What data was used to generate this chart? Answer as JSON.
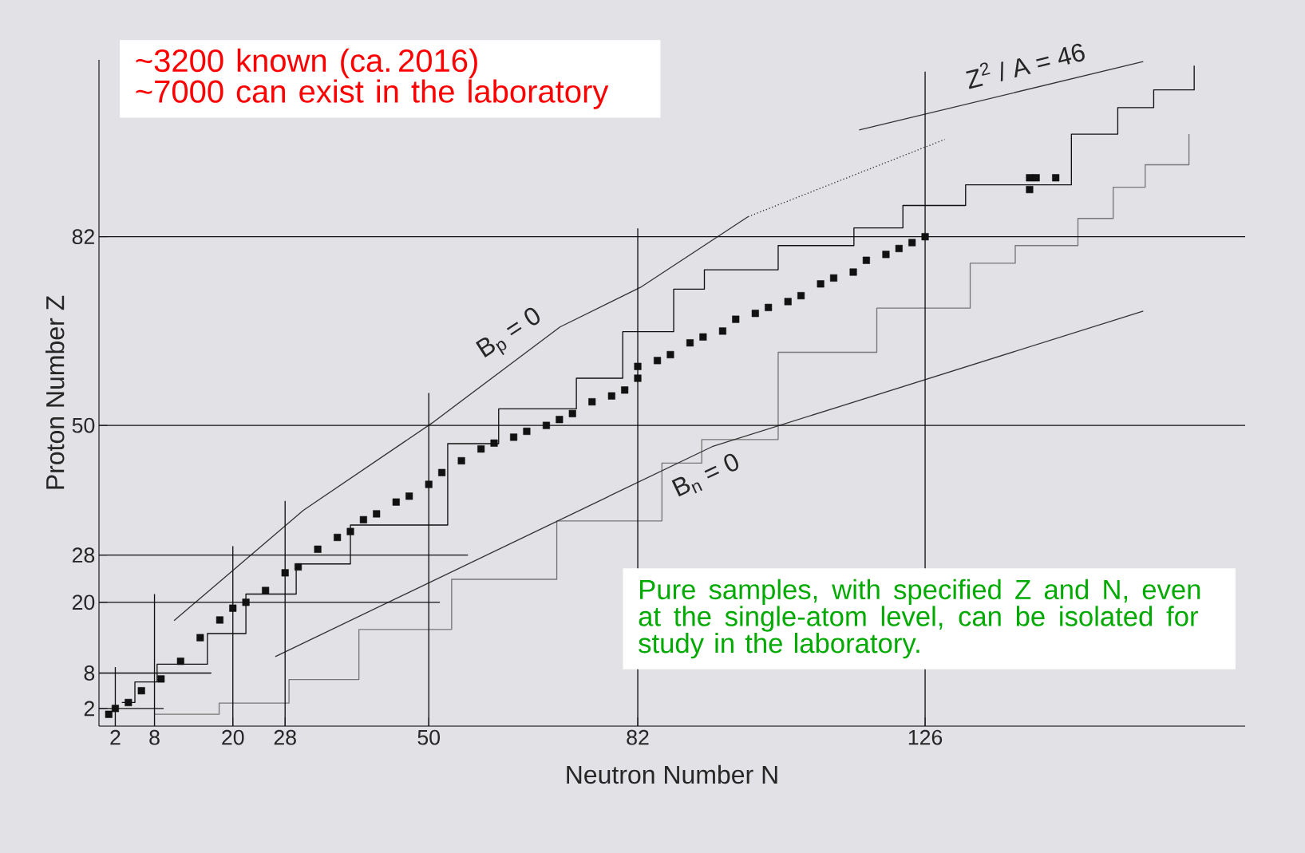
{
  "chart_data": {
    "type": "scatter",
    "xlabel": "Neutron Number   N",
    "ylabel": "Proton Number   Z",
    "xlim": [
      -0.5,
      175
    ],
    "ylim": [
      -1,
      112
    ],
    "xticks": [
      2,
      8,
      20,
      28,
      50,
      82,
      126
    ],
    "yticks": [
      2,
      8,
      20,
      28,
      50,
      82
    ],
    "grid": false,
    "series": [
      {
        "marker": "square",
        "color": "#111111",
        "x": [
          1,
          2,
          4,
          6,
          9,
          12,
          15,
          18,
          20,
          22,
          25,
          28,
          30,
          33,
          36,
          38,
          40,
          42,
          45,
          47,
          50,
          52,
          55,
          58,
          60,
          63,
          65,
          68,
          70,
          72,
          75,
          78,
          80,
          82,
          82,
          85,
          87,
          90,
          92,
          95,
          97,
          100,
          102,
          105,
          107,
          110,
          112,
          115,
          117,
          120,
          122,
          124,
          126,
          142,
          143,
          146,
          142
        ],
        "values": [
          1,
          2,
          3,
          5,
          7,
          10,
          14,
          17,
          19,
          20,
          22,
          25,
          26,
          29,
          31,
          32,
          34,
          35,
          37,
          38,
          40,
          42,
          44,
          46,
          47,
          48,
          49,
          50,
          51,
          52,
          54,
          55,
          56,
          58,
          60,
          61,
          62,
          64,
          65,
          66,
          68,
          69,
          70,
          71,
          72,
          74,
          75,
          76,
          78,
          79,
          80,
          81,
          82,
          92,
          92,
          92,
          90
        ]
      },
      {
        "type": "step",
        "color": "#111111",
        "x": [
          3,
          5,
          8.4,
          16.1,
          22,
          29.7,
          38,
          52.9,
          60.7,
          72.6,
          79.7,
          87.5,
          92.2,
          103.5,
          115.1,
          122.6,
          132.2,
          148.4,
          155.5,
          161,
          167.2
        ],
        "values": [
          3,
          6.5,
          9.5,
          14.7,
          21.4,
          26.5,
          33.1,
          46.9,
          52.8,
          58,
          65.9,
          73.1,
          76.4,
          80.5,
          83.5,
          87.3,
          90.8,
          99.4,
          103.9,
          106.9,
          111
        ]
      },
      {
        "type": "step",
        "color": "#777777",
        "x": [
          8,
          17.9,
          28.6,
          39.3,
          53.5,
          69.6,
          85.7,
          91.8,
          103.5,
          118.6,
          132.9,
          139.8,
          149.4,
          154.8,
          159.7,
          166.4
        ],
        "values": [
          1,
          2.9,
          6.9,
          15.4,
          23.9,
          33.8,
          43.6,
          47.6,
          62.4,
          69.9,
          77.5,
          80.5,
          85.1,
          90.4,
          94.2,
          99.4
        ]
      },
      {
        "type": "line",
        "line_style": "solid",
        "color": "#333333",
        "x": [
          11,
          30.8,
          50.5,
          70.1,
          82.4,
          98.9
        ],
        "values": [
          16.9,
          35.6,
          50.4,
          66.7,
          73.4,
          85.4
        ]
      },
      {
        "type": "line",
        "line_style": "dotted",
        "color": "#333333",
        "x": [
          98.9,
          129
        ],
        "values": [
          85.4,
          98.5
        ]
      },
      {
        "type": "line",
        "line_style": "solid",
        "color": "#333333",
        "x": [
          26.5,
          93.4,
          159.4
        ],
        "values": [
          10.8,
          46.4,
          69.4
        ]
      },
      {
        "type": "line",
        "line_style": "solid",
        "color": "#333333",
        "x": [
          115.9,
          159.4
        ],
        "values": [
          100.1,
          111.7
        ]
      },
      {
        "type": "line",
        "line_style": "solid",
        "color": "#111111",
        "x": [
          -0.5,
          175
        ],
        "values": [
          82,
          82
        ]
      },
      {
        "type": "line",
        "line_style": "solid",
        "color": "#111111",
        "x": [
          -0.5,
          175
        ],
        "values": [
          50,
          50
        ]
      },
      {
        "type": "line",
        "line_style": "solid",
        "color": "#111111",
        "x": [
          -0.5,
          56
        ],
        "values": [
          28,
          28
        ]
      },
      {
        "type": "line",
        "line_style": "solid",
        "color": "#111111",
        "x": [
          -0.5,
          51.7
        ],
        "values": [
          20,
          20
        ]
      },
      {
        "type": "line",
        "line_style": "solid",
        "color": "#111111",
        "x": [
          -0.5,
          16.7
        ],
        "values": [
          8,
          8
        ]
      },
      {
        "type": "line",
        "line_style": "solid",
        "color": "#111111",
        "x": [
          -0.5,
          9.4
        ],
        "values": [
          2,
          2
        ]
      },
      {
        "type": "line",
        "line_style": "solid",
        "color": "#111111",
        "x": [
          2,
          2
        ],
        "values": [
          -1,
          9
        ]
      },
      {
        "type": "line",
        "line_style": "solid",
        "color": "#111111",
        "x": [
          8,
          8
        ],
        "values": [
          -1,
          21.4
        ]
      },
      {
        "type": "line",
        "line_style": "solid",
        "color": "#111111",
        "x": [
          20,
          20
        ],
        "values": [
          -1,
          29.5
        ]
      },
      {
        "type": "line",
        "line_style": "solid",
        "color": "#111111",
        "x": [
          28,
          28
        ],
        "values": [
          -1,
          37.2
        ]
      },
      {
        "type": "line",
        "line_style": "solid",
        "color": "#111111",
        "x": [
          50,
          50
        ],
        "values": [
          -1,
          55.5
        ]
      },
      {
        "type": "line",
        "line_style": "solid",
        "color": "#111111",
        "x": [
          82,
          82
        ],
        "values": [
          -1,
          83.4
        ]
      },
      {
        "type": "line",
        "line_style": "solid",
        "color": "#111111",
        "x": [
          126,
          126
        ],
        "values": [
          -1,
          110
        ]
      }
    ],
    "annotations": [
      "~3200 known (ca. 2016)",
      "~7000 can exist in the laboratory",
      "Pure samples, with specified Z and N, even at the single-atom level, can be isolated for study in the laboratory.",
      "B$_{p}$ = 0",
      "B$_{n}$ = 0",
      "Z$^{2}$ / A = 46"
    ]
  }
}
